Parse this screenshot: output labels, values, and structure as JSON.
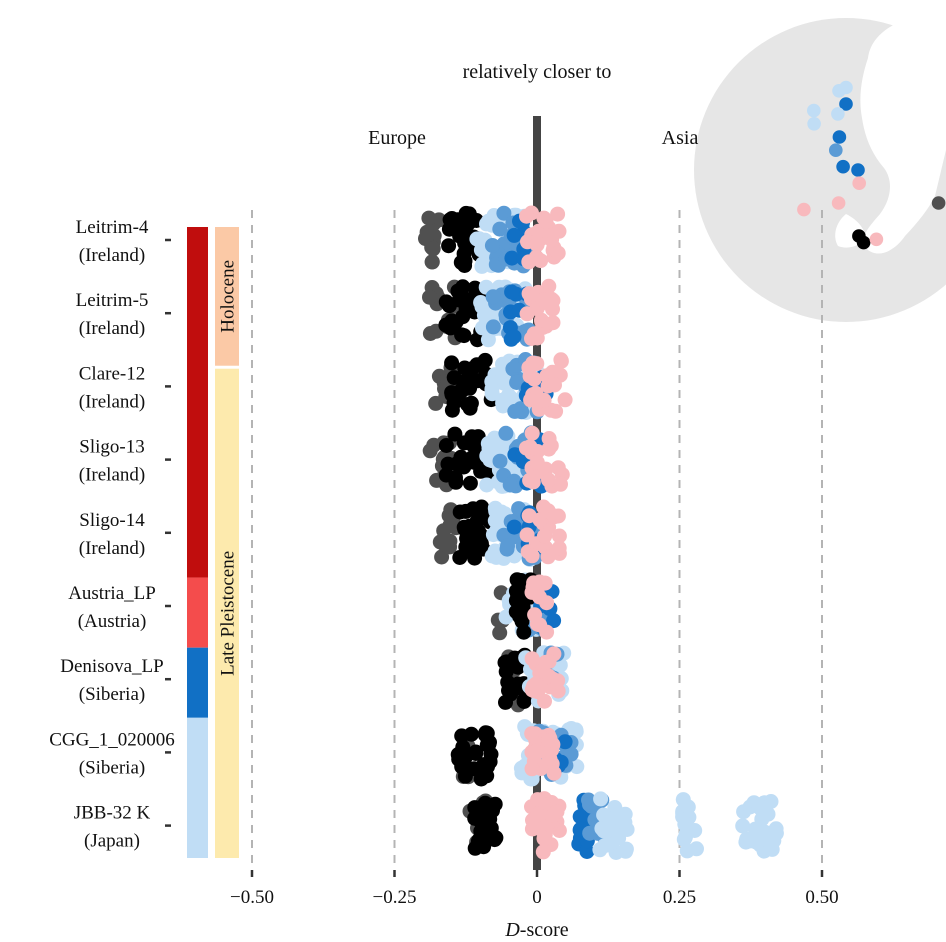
{
  "chart_data": {
    "type": "scatter",
    "title": "relatively closer to",
    "direction_labels": {
      "left": "Europe",
      "right": "Asia"
    },
    "xlabel_italic": "D",
    "xlabel_rest": "-score",
    "ylabel": "",
    "xlim": [
      -0.62,
      0.6
    ],
    "x_ticks": [
      -0.5,
      -0.25,
      0,
      0.25,
      0.5
    ],
    "x_tick_labels": [
      "−0.50",
      "−0.25",
      "0",
      "0.25",
      "0.50"
    ],
    "grid": "dashed vertical lines at x ticks",
    "zero_line": "thick dark bar at D = 0",
    "samples": [
      {
        "name": "Leitrim-4",
        "region": "(Ireland)"
      },
      {
        "name": "Leitrim-5",
        "region": "(Ireland)"
      },
      {
        "name": "Clare-12",
        "region": "(Ireland)"
      },
      {
        "name": "Sligo-13",
        "region": "(Ireland)"
      },
      {
        "name": "Sligo-14",
        "region": "(Ireland)"
      },
      {
        "name": "Austria_LP",
        "region": "(Austria)"
      },
      {
        "name": "Denisova_LP",
        "region": "(Siberia)"
      },
      {
        "name": "CGG_1_020006",
        "region": "(Siberia)"
      },
      {
        "name": "JBB-32 K",
        "region": "(Japan)"
      }
    ],
    "period_bands": [
      {
        "label": "Holocene",
        "color": "#fbc9a6",
        "from_sample": 0,
        "to_sample": 2
      },
      {
        "label": "Late Pleistocene",
        "color": "#fdeaad",
        "from_sample": 2,
        "to_sample": 9
      }
    ],
    "group_bars": [
      {
        "color": "#c00d0d",
        "from_sample": 0,
        "to_sample": 5
      },
      {
        "color": "#f44c4c",
        "from_sample": 5,
        "to_sample": 6
      },
      {
        "color": "#1170c5",
        "from_sample": 6,
        "to_sample": 7
      },
      {
        "color": "#c0ddf5",
        "from_sample": 7,
        "to_sample": 9
      }
    ],
    "series_colors": {
      "darkgray": "#505050",
      "black": "#000000",
      "lightblue": "#c0ddf5",
      "medblue": "#5b9bd5",
      "blue": "#1170c5",
      "pink": "#f8b9bd"
    },
    "clusters": [
      [
        {
          "color": "darkgray",
          "range": [
            -0.2,
            -0.17
          ],
          "n": 12
        },
        {
          "color": "black",
          "range": [
            -0.16,
            -0.1
          ],
          "n": 28
        },
        {
          "color": "lightblue",
          "range": [
            -0.11,
            -0.02
          ],
          "n": 40
        },
        {
          "color": "medblue",
          "range": [
            -0.08,
            -0.01
          ],
          "n": 18
        },
        {
          "color": "blue",
          "range": [
            -0.05,
            -0.01
          ],
          "n": 8
        },
        {
          "color": "pink",
          "range": [
            -0.02,
            0.04
          ],
          "n": 22
        }
      ],
      [
        {
          "color": "darkgray",
          "range": [
            -0.19,
            -0.14
          ],
          "n": 14
        },
        {
          "color": "black",
          "range": [
            -0.16,
            -0.09
          ],
          "n": 28
        },
        {
          "color": "lightblue",
          "range": [
            -0.1,
            -0.02
          ],
          "n": 40
        },
        {
          "color": "medblue",
          "range": [
            -0.08,
            -0.01
          ],
          "n": 18
        },
        {
          "color": "blue",
          "range": [
            -0.05,
            -0.01
          ],
          "n": 8
        },
        {
          "color": "pink",
          "range": [
            -0.02,
            0.03
          ],
          "n": 22
        }
      ],
      [
        {
          "color": "darkgray",
          "range": [
            -0.18,
            -0.15
          ],
          "n": 12
        },
        {
          "color": "black",
          "range": [
            -0.15,
            -0.08
          ],
          "n": 28
        },
        {
          "color": "lightblue",
          "range": [
            -0.08,
            0.0
          ],
          "n": 40
        },
        {
          "color": "medblue",
          "range": [
            -0.06,
            0.01
          ],
          "n": 18
        },
        {
          "color": "blue",
          "range": [
            -0.03,
            0.02
          ],
          "n": 8
        },
        {
          "color": "pink",
          "range": [
            -0.02,
            0.05
          ],
          "n": 22
        }
      ],
      [
        {
          "color": "darkgray",
          "range": [
            -0.19,
            -0.15
          ],
          "n": 14
        },
        {
          "color": "black",
          "range": [
            -0.16,
            -0.08
          ],
          "n": 28
        },
        {
          "color": "lightblue",
          "range": [
            -0.09,
            -0.01
          ],
          "n": 40
        },
        {
          "color": "medblue",
          "range": [
            -0.07,
            0.0
          ],
          "n": 18
        },
        {
          "color": "blue",
          "range": [
            -0.04,
            0.01
          ],
          "n": 8
        },
        {
          "color": "pink",
          "range": [
            -0.02,
            0.05
          ],
          "n": 22
        }
      ],
      [
        {
          "color": "darkgray",
          "range": [
            -0.17,
            -0.14
          ],
          "n": 12
        },
        {
          "color": "black",
          "range": [
            -0.14,
            -0.08
          ],
          "n": 28
        },
        {
          "color": "lightblue",
          "range": [
            -0.08,
            -0.01
          ],
          "n": 40
        },
        {
          "color": "medblue",
          "range": [
            -0.06,
            0.0
          ],
          "n": 18
        },
        {
          "color": "blue",
          "range": [
            -0.04,
            0.01
          ],
          "n": 8
        },
        {
          "color": "pink",
          "range": [
            -0.02,
            0.04
          ],
          "n": 22
        }
      ],
      [
        {
          "color": "darkgray",
          "range": [
            -0.07,
            -0.06
          ],
          "n": 4
        },
        {
          "color": "lightblue",
          "range": [
            -0.06,
            0.01
          ],
          "n": 26
        },
        {
          "color": "medblue",
          "range": [
            -0.04,
            0.02
          ],
          "n": 10
        },
        {
          "color": "black",
          "range": [
            -0.04,
            -0.01
          ],
          "n": 18
        },
        {
          "color": "blue",
          "range": [
            0.0,
            0.03
          ],
          "n": 6
        },
        {
          "color": "pink",
          "range": [
            -0.01,
            0.02
          ],
          "n": 16
        }
      ],
      [
        {
          "color": "darkgray",
          "range": [
            -0.05,
            -0.03
          ],
          "n": 6
        },
        {
          "color": "black",
          "range": [
            -0.06,
            -0.02
          ],
          "n": 20
        },
        {
          "color": "lightblue",
          "range": [
            -0.02,
            0.05
          ],
          "n": 30
        },
        {
          "color": "medblue",
          "range": [
            0.0,
            0.04
          ],
          "n": 8
        },
        {
          "color": "pink",
          "range": [
            -0.01,
            0.04
          ],
          "n": 22
        }
      ],
      [
        {
          "color": "darkgray",
          "range": [
            -0.14,
            -0.12
          ],
          "n": 8
        },
        {
          "color": "black",
          "range": [
            -0.14,
            -0.08
          ],
          "n": 26
        },
        {
          "color": "lightblue",
          "range": [
            -0.03,
            0.07
          ],
          "n": 38
        },
        {
          "color": "medblue",
          "range": [
            0.0,
            0.06
          ],
          "n": 16
        },
        {
          "color": "blue",
          "range": [
            0.02,
            0.05
          ],
          "n": 6
        },
        {
          "color": "pink",
          "range": [
            -0.01,
            0.03
          ],
          "n": 24
        }
      ],
      [
        {
          "color": "darkgray",
          "range": [
            -0.12,
            -0.08
          ],
          "n": 8
        },
        {
          "color": "black",
          "range": [
            -0.11,
            -0.07
          ],
          "n": 24
        },
        {
          "color": "pink",
          "range": [
            -0.01,
            0.04
          ],
          "n": 26
        },
        {
          "color": "blue",
          "range": [
            0.07,
            0.09
          ],
          "n": 16
        },
        {
          "color": "medblue",
          "range": [
            0.09,
            0.12
          ],
          "n": 14
        },
        {
          "color": "lightblue",
          "range": [
            0.11,
            0.16
          ],
          "n": 22
        },
        {
          "color": "lightblue",
          "range": [
            0.25,
            0.28
          ],
          "n": 14
        },
        {
          "color": "lightblue",
          "range": [
            0.36,
            0.42
          ],
          "n": 26
        }
      ]
    ]
  },
  "map_sites": [
    {
      "color": "lightblue",
      "lon": 128,
      "lat": 79
    },
    {
      "color": "lightblue",
      "lon": 135,
      "lat": 80
    },
    {
      "color": "blue",
      "lon": 135,
      "lat": 75
    },
    {
      "color": "lightblue",
      "lon": 130,
      "lat": 72
    },
    {
      "color": "lightblue",
      "lon": 114,
      "lat": 73
    },
    {
      "color": "lightblue",
      "lon": 118,
      "lat": 69
    },
    {
      "color": "blue",
      "lon": 132,
      "lat": 65
    },
    {
      "color": "medblue",
      "lon": 131,
      "lat": 61
    },
    {
      "color": "blue",
      "lon": 134,
      "lat": 56
    },
    {
      "color": "blue",
      "lon": 139,
      "lat": 55
    },
    {
      "color": "pink",
      "lon": 139,
      "lat": 51
    },
    {
      "color": "pink",
      "lon": 133,
      "lat": 45
    },
    {
      "color": "pink",
      "lon": 124,
      "lat": 43
    },
    {
      "color": "darkgray",
      "lon": 160,
      "lat": 45
    },
    {
      "color": "black",
      "lon": 138,
      "lat": 35
    },
    {
      "color": "black",
      "lon": 139,
      "lat": 33
    },
    {
      "color": "pink",
      "lon": 142,
      "lat": 34
    }
  ]
}
